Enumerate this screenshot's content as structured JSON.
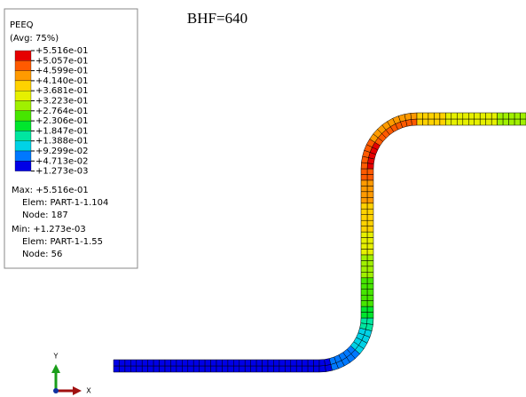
{
  "title": "BHF=640",
  "legend": {
    "title": "PEEQ",
    "subtitle": "(Avg: 75%)",
    "levels": [
      "+5.516e-01",
      "+5.057e-01",
      "+4.599e-01",
      "+4.140e-01",
      "+3.681e-01",
      "+3.223e-01",
      "+2.764e-01",
      "+2.306e-01",
      "+1.847e-01",
      "+1.388e-01",
      "+9.299e-02",
      "+4.713e-02",
      "+1.273e-03"
    ],
    "colors": [
      "#e60000",
      "#ff5a00",
      "#ff9a00",
      "#ffd200",
      "#e6f000",
      "#a0f000",
      "#46e600",
      "#00e62d",
      "#00e6a0",
      "#00d2e6",
      "#0078ff",
      "#0000e6"
    ]
  },
  "max": {
    "line": "Max: +5.516e-01",
    "elem": "Elem: PART-1-1.104",
    "node": "Node: 187"
  },
  "min": {
    "line": "Min: +1.273e-03",
    "elem": "Elem: PART-1-1.55",
    "node": "Node: 56"
  },
  "triad": {
    "y": "Y",
    "x": "X"
  }
}
